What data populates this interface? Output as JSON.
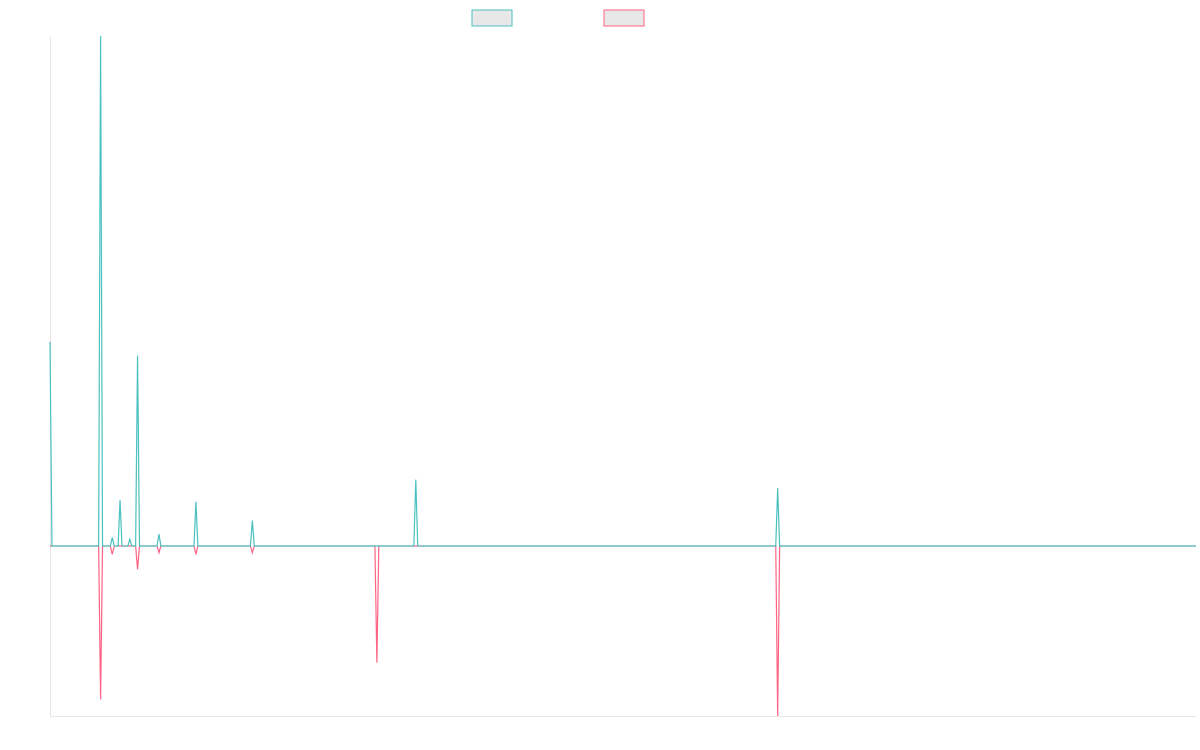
{
  "chart_data": {
    "type": "line",
    "title": "",
    "xlabel": "",
    "ylabel": "",
    "ylim": [
      -1.02,
      1.0
    ],
    "grid": false,
    "legend_placement": "top-center",
    "colors": {
      "series_0": "#4bc0c0",
      "series_1": "#ff6384",
      "axis": "#e6e6e6",
      "legend_fill": "#e8e8e8"
    },
    "series": [
      {
        "values": [
          0.6,
          0,
          0,
          0,
          0,
          0,
          0,
          0,
          0,
          0,
          0,
          0,
          0,
          0,
          0,
          0,
          0,
          0,
          0,
          0,
          0,
          0,
          0,
          0,
          0,
          0,
          1.5,
          0,
          0,
          0,
          0,
          0,
          0.025,
          0,
          0,
          0,
          0.135,
          0,
          0,
          0,
          0,
          0.02,
          0,
          0,
          0,
          0.56,
          0,
          0,
          0,
          0,
          0,
          0,
          0,
          0,
          0,
          0,
          0.035,
          0,
          0,
          0,
          0,
          0,
          0,
          0,
          0,
          0,
          0,
          0,
          0,
          0,
          0,
          0,
          0,
          0,
          0,
          0.13,
          0,
          0,
          0,
          0,
          0,
          0,
          0,
          0,
          0,
          0,
          0,
          0,
          0,
          0,
          0,
          0,
          0,
          0,
          0,
          0,
          0,
          0,
          0,
          0,
          0,
          0,
          0,
          0,
          0.075,
          0,
          0,
          0,
          0,
          0,
          0,
          0,
          0,
          0,
          0,
          0,
          0,
          0,
          0,
          0,
          0,
          0,
          0,
          0,
          0,
          0,
          0,
          0,
          0,
          0,
          0,
          0,
          0,
          0,
          0,
          0,
          0,
          0,
          0,
          0,
          0,
          0,
          0,
          0,
          0,
          0,
          0,
          0,
          0,
          0,
          0,
          0,
          0,
          0,
          0,
          0,
          0,
          0,
          0,
          0,
          0,
          0,
          0,
          0,
          0,
          0,
          0,
          0,
          0,
          0,
          0,
          0,
          0,
          0,
          0,
          0,
          0,
          0,
          0,
          0,
          0,
          0,
          0,
          0,
          0,
          0,
          0,
          0,
          0.195,
          0,
          0,
          0,
          0,
          0,
          0,
          0,
          0,
          0,
          0,
          0,
          0,
          0,
          0,
          0,
          0,
          0,
          0,
          0,
          0,
          0,
          0,
          0,
          0,
          0,
          0,
          0,
          0,
          0,
          0,
          0,
          0,
          0,
          0,
          0,
          0,
          0,
          0,
          0,
          0,
          0,
          0,
          0,
          0,
          0,
          0,
          0,
          0,
          0,
          0,
          0,
          0,
          0,
          0,
          0,
          0,
          0,
          0,
          0,
          0,
          0,
          0,
          0,
          0,
          0,
          0,
          0,
          0,
          0,
          0,
          0,
          0,
          0,
          0,
          0,
          0,
          0,
          0,
          0,
          0,
          0,
          0,
          0,
          0,
          0,
          0,
          0,
          0,
          0,
          0,
          0,
          0,
          0,
          0,
          0,
          0,
          0,
          0,
          0,
          0,
          0,
          0,
          0,
          0,
          0,
          0,
          0,
          0,
          0,
          0,
          0,
          0,
          0,
          0,
          0,
          0,
          0,
          0,
          0,
          0,
          0,
          0,
          0,
          0,
          0,
          0,
          0,
          0,
          0,
          0,
          0,
          0,
          0,
          0,
          0,
          0,
          0,
          0,
          0,
          0,
          0,
          0,
          0,
          0,
          0,
          0,
          0,
          0,
          0,
          0,
          0,
          0,
          0,
          0,
          0,
          0,
          0,
          0,
          0,
          0,
          0,
          0,
          0,
          0,
          0,
          0,
          0,
          0,
          0,
          0,
          0,
          0,
          0,
          0,
          0,
          0,
          0,
          0,
          0,
          0,
          0,
          0,
          0,
          0,
          0,
          0,
          0,
          0,
          0,
          0,
          0,
          0,
          0,
          0,
          0,
          0,
          0,
          0,
          0,
          0,
          0,
          0,
          0,
          0,
          0,
          0,
          0,
          0,
          0,
          0,
          0,
          0,
          0,
          0,
          0,
          0,
          0,
          0,
          0,
          0,
          0,
          0,
          0,
          0,
          0,
          0,
          0,
          0,
          0,
          0,
          0,
          0,
          0,
          0,
          0,
          0,
          0,
          0,
          0,
          0,
          0,
          0,
          0,
          0,
          0,
          0,
          0,
          0,
          0,
          0,
          0,
          0,
          0,
          0,
          0,
          0,
          0,
          0,
          0,
          0,
          0,
          0,
          0,
          0,
          0,
          0,
          0,
          0,
          0,
          0,
          0,
          0,
          0,
          0,
          0,
          0,
          0,
          0,
          0,
          0,
          0,
          0,
          0,
          0,
          0,
          0,
          0,
          0,
          0,
          0,
          0,
          0,
          0,
          0,
          0,
          0,
          0,
          0,
          0,
          0,
          0,
          0,
          0,
          0,
          0,
          0,
          0,
          0,
          0,
          0,
          0,
          0,
          0,
          0,
          0,
          0,
          0,
          0,
          0,
          0,
          0,
          0,
          0,
          0,
          0,
          0,
          0,
          0,
          0,
          0,
          0,
          0,
          0,
          0,
          0,
          0,
          0,
          0,
          0,
          0,
          0,
          0,
          0,
          0,
          0,
          0,
          0,
          0,
          0,
          0,
          0,
          0,
          0,
          0,
          0,
          0,
          0,
          0,
          0,
          0,
          0,
          0,
          0,
          0,
          0,
          0,
          0,
          0,
          0,
          0,
          0,
          0,
          0,
          0,
          0,
          0,
          0,
          0,
          0,
          0,
          0,
          0,
          0,
          0,
          0,
          0,
          0,
          0,
          0,
          0,
          0,
          0,
          0,
          0,
          0,
          0,
          0,
          0,
          0,
          0,
          0
        ]
      },
      {
        "values": []
      }
    ]
  }
}
